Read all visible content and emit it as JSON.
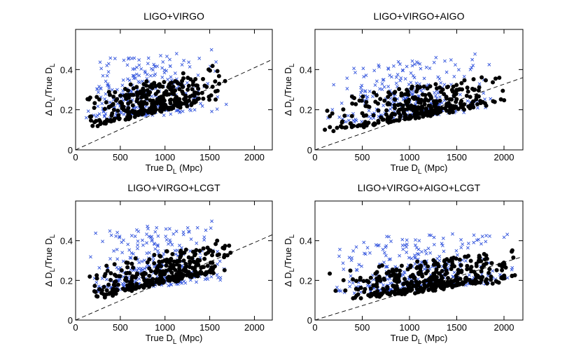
{
  "chart_data": [
    {
      "type": "scatter",
      "title": "LIGO+VIRGO",
      "xlabel": "True D",
      "xlabel_sub": "L",
      "xlabel_suffix": " (Mpc)",
      "ylabel": "Δ D",
      "ylabel_sub": "L",
      "ylabel_mid": "/True D",
      "ylabel_sub2": "L",
      "xlim": [
        0,
        2200
      ],
      "ylim": [
        0,
        0.6
      ],
      "xticks": [
        0,
        500,
        1000,
        1500,
        2000
      ],
      "xtick_labels": [
        "0",
        "500",
        "1000",
        "1500",
        "2000"
      ],
      "yticks": [
        0,
        0.2,
        0.4
      ],
      "ytick_labels": [
        "0",
        "0.2",
        "0.4"
      ],
      "reference_line": {
        "x": [
          0,
          2200
        ],
        "y": [
          0,
          0.45
        ]
      },
      "series": [
        {
          "name": "crosses",
          "marker": "x",
          "color": "#3355dd",
          "seed": 11,
          "n": 300,
          "x_range": [
            100,
            1700
          ],
          "x_mode": 650,
          "y_base": 0.15,
          "y_slope": 3e-05,
          "y_spread": 0.3
        },
        {
          "name": "dots",
          "marker": "o",
          "color": "#000000",
          "seed": 12,
          "n": 320,
          "x_range": [
            80,
            1720
          ],
          "x_mode": 950,
          "y_base": 0.1,
          "y_slope": 0.0001,
          "y_spread": 0.16
        }
      ]
    },
    {
      "type": "scatter",
      "title": "LIGO+VIRGO+AIGO",
      "xlabel": "True D",
      "xlabel_sub": "L",
      "xlabel_suffix": " (Mpc)",
      "ylabel": "Δ D",
      "ylabel_sub": "L",
      "ylabel_mid": "/True D",
      "ylabel_sub2": "L",
      "xlim": [
        0,
        2200
      ],
      "ylim": [
        0,
        0.6
      ],
      "xticks": [
        0,
        500,
        1000,
        1500,
        2000
      ],
      "xtick_labels": [
        "0",
        "500",
        "1000",
        "1500",
        "2000"
      ],
      "yticks": [
        0,
        0.2,
        0.4
      ],
      "ytick_labels": [
        "0",
        "0.2",
        "0.4"
      ],
      "reference_line": {
        "x": [
          0,
          2200
        ],
        "y": [
          0,
          0.36
        ]
      },
      "series": [
        {
          "name": "crosses",
          "marker": "x",
          "color": "#3355dd",
          "seed": 21,
          "n": 300,
          "x_range": [
            100,
            2000
          ],
          "x_mode": 900,
          "y_base": 0.13,
          "y_slope": 4e-05,
          "y_spread": 0.28
        },
        {
          "name": "dots",
          "marker": "o",
          "color": "#000000",
          "seed": 22,
          "n": 340,
          "x_range": [
            80,
            2100
          ],
          "x_mode": 1150,
          "y_base": 0.08,
          "y_slope": 8e-05,
          "y_spread": 0.15
        }
      ]
    },
    {
      "type": "scatter",
      "title": "LIGO+VIRGO+LCGT",
      "xlabel": "True D",
      "xlabel_sub": "L",
      "xlabel_suffix": " (Mpc)",
      "ylabel": "Δ D",
      "ylabel_sub": "L",
      "ylabel_mid": "/True D",
      "ylabel_sub2": "L",
      "xlim": [
        0,
        2200
      ],
      "ylim": [
        0,
        0.6
      ],
      "xticks": [
        0,
        500,
        1000,
        1500,
        2000
      ],
      "xtick_labels": [
        "0",
        "500",
        "1000",
        "1500",
        "2000"
      ],
      "yticks": [
        0,
        0.2,
        0.4
      ],
      "ytick_labels": [
        "0",
        "0.2",
        "0.4"
      ],
      "reference_line": {
        "x": [
          0,
          2200
        ],
        "y": [
          0,
          0.43
        ]
      },
      "series": [
        {
          "name": "crosses",
          "marker": "x",
          "color": "#3355dd",
          "seed": 31,
          "n": 300,
          "x_range": [
            100,
            1750
          ],
          "x_mode": 800,
          "y_base": 0.14,
          "y_slope": 4e-05,
          "y_spread": 0.3
        },
        {
          "name": "dots",
          "marker": "o",
          "color": "#000000",
          "seed": 32,
          "n": 340,
          "x_range": [
            80,
            1780
          ],
          "x_mode": 1100,
          "y_base": 0.09,
          "y_slope": 0.0001,
          "y_spread": 0.15
        }
      ]
    },
    {
      "type": "scatter",
      "title": "LIGO+VIRGO+AIGO+LCGT",
      "xlabel": "True D",
      "xlabel_sub": "L",
      "xlabel_suffix": " (Mpc)",
      "ylabel": "Δ D",
      "ylabel_sub": "L",
      "ylabel_mid": "/True D",
      "ylabel_sub2": "L",
      "xlim": [
        0,
        2200
      ],
      "ylim": [
        0,
        0.6
      ],
      "xticks": [
        0,
        500,
        1000,
        1500,
        2000
      ],
      "xtick_labels": [
        "0",
        "500",
        "1000",
        "1500",
        "2000"
      ],
      "yticks": [
        0,
        0.2,
        0.4
      ],
      "ytick_labels": [
        "0",
        "0.2",
        "0.4"
      ],
      "reference_line": {
        "x": [
          0,
          2200
        ],
        "y": [
          0,
          0.32
        ]
      },
      "series": [
        {
          "name": "crosses",
          "marker": "x",
          "color": "#3355dd",
          "seed": 41,
          "n": 320,
          "x_range": [
            100,
            2150
          ],
          "x_mode": 1000,
          "y_base": 0.13,
          "y_slope": 3e-05,
          "y_spread": 0.26
        },
        {
          "name": "dots",
          "marker": "o",
          "color": "#000000",
          "seed": 42,
          "n": 380,
          "x_range": [
            80,
            2200
          ],
          "x_mode": 1300,
          "y_base": 0.08,
          "y_slope": 6e-05,
          "y_spread": 0.15
        }
      ]
    }
  ]
}
